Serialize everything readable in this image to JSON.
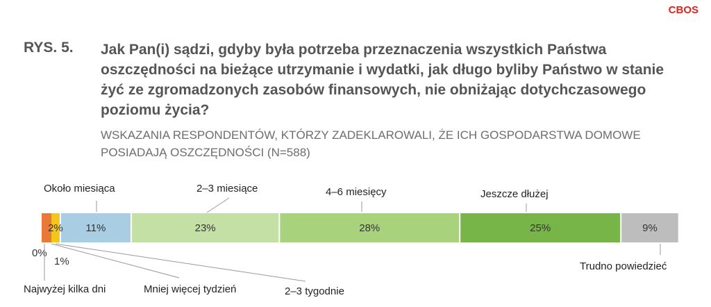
{
  "header": {
    "brand": "CBOS",
    "figure_label": "RYS. 5.",
    "title": "Jak Pan(i) sądzi, gdyby była potrzeba przeznaczenia wszystkich Państwa oszczędności na bieżące utrzymanie i wydatki, jak długo byliby Państwo w stanie żyć ze zgromadzonych zasobów finansowych, nie obniżając dotychczasowego poziomu życia?",
    "subtitle": "WSKAZANIA RESPONDENTÓW, KTÓRZY ZADEKLAROWALI, ŻE ICH GOSPODARSTWA DOMOWE POSIADAJĄ OSZCZĘDNOŚCI (N=588)"
  },
  "chart_data": {
    "type": "bar",
    "stacked": true,
    "orientation": "horizontal",
    "categories": [
      "Najwyżej kilka dni",
      "Mniej więcej tydzień",
      "2–3 tygodnie",
      "Około miesiąca",
      "2–3 miesiące",
      "4–6 miesięcy",
      "Jeszcze dłużej",
      "Trudno powiedzieć"
    ],
    "values": [
      0,
      1,
      2,
      11,
      23,
      28,
      25,
      9
    ],
    "value_labels": [
      "0%",
      "1%",
      "2%",
      "11%",
      "23%",
      "28%",
      "25%",
      "9%"
    ],
    "colors": [
      "#e8793a",
      "#e8793a",
      "#f5c518",
      "#a9cde3",
      "#c5e0a5",
      "#a8d27c",
      "#78b548",
      "#bdbdbd"
    ],
    "label_position": [
      "below",
      "below",
      "below",
      "above",
      "above",
      "above",
      "above",
      "below"
    ],
    "xlim": [
      0,
      100
    ]
  }
}
